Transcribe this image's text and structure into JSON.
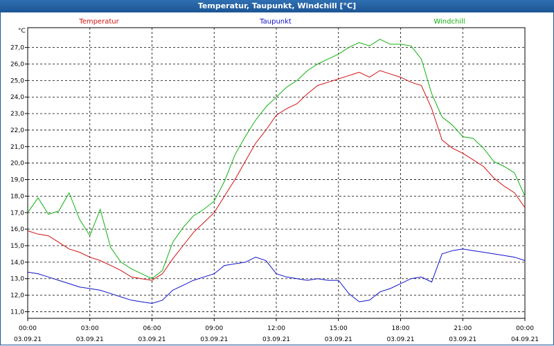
{
  "chart_data": {
    "type": "line",
    "title": "Temperatur, Taupunkt, Windchill [°C]",
    "yunit": "°C",
    "ylim": [
      10.6,
      28.2
    ],
    "yticks": [
      11.0,
      12.0,
      13.0,
      14.0,
      15.0,
      16.0,
      17.0,
      18.0,
      19.0,
      20.0,
      21.0,
      22.0,
      23.0,
      24.0,
      25.0,
      26.0,
      27.0
    ],
    "ytick_labels": [
      "11,0",
      "12,0",
      "13,0",
      "14,0",
      "15,0",
      "16,0",
      "17,0",
      "18,0",
      "19,0",
      "20,0",
      "21,0",
      "22,0",
      "23,0",
      "24,0",
      "25,0",
      "26,0",
      "27,0"
    ],
    "xlim": [
      0,
      24
    ],
    "xticks": [
      0,
      3,
      6,
      9,
      12,
      15,
      18,
      21,
      24
    ],
    "xtick_time": [
      "00:00",
      "03:00",
      "06:00",
      "09:00",
      "12:00",
      "15:00",
      "18:00",
      "21:00",
      "00:00"
    ],
    "xtick_date": [
      "03.09.21",
      "03.09.21",
      "03.09.21",
      "03.09.21",
      "03.09.21",
      "03.09.21",
      "03.09.21",
      "03.09.21",
      "04.09.21"
    ],
    "grid": true,
    "legend_position": "top",
    "series": [
      {
        "name": "Temperatur",
        "color": "#d01010",
        "x": [
          0,
          0.5,
          1,
          1.5,
          2,
          2.5,
          3,
          3.5,
          4,
          4.5,
          5,
          5.5,
          6,
          6.5,
          7,
          7.5,
          8,
          8.5,
          9,
          9.5,
          10,
          10.5,
          11,
          11.5,
          12,
          12.5,
          13,
          13.5,
          14,
          14.5,
          15,
          15.5,
          16,
          16.5,
          17,
          17.5,
          18,
          18.5,
          19,
          19.5,
          20,
          20.5,
          21,
          21.5,
          22,
          22.5,
          23,
          23.5,
          24
        ],
        "values": [
          15.9,
          15.7,
          15.6,
          15.2,
          14.8,
          14.6,
          14.3,
          14.1,
          13.8,
          13.5,
          13.1,
          13.0,
          12.9,
          13.3,
          14.2,
          15.0,
          15.8,
          16.4,
          17.0,
          18.0,
          19.0,
          20.1,
          21.2,
          22.0,
          22.9,
          23.3,
          23.6,
          24.2,
          24.7,
          24.9,
          25.1,
          25.3,
          25.5,
          25.2,
          25.6,
          25.4,
          25.2,
          24.9,
          24.7,
          23.3,
          21.4,
          20.9,
          20.6,
          20.2,
          19.8,
          19.1,
          18.6,
          18.2,
          17.3
        ]
      },
      {
        "name": "Taupunkt",
        "color": "#1010c8",
        "x": [
          0,
          0.5,
          1,
          1.5,
          2,
          2.5,
          3,
          3.5,
          4,
          4.5,
          5,
          5.5,
          6,
          6.5,
          7,
          7.5,
          8,
          8.5,
          9,
          9.5,
          10,
          10.5,
          11,
          11.5,
          12,
          12.5,
          13,
          13.5,
          14,
          14.5,
          15,
          15.5,
          16,
          16.5,
          17,
          17.5,
          18,
          18.5,
          19,
          19.5,
          20,
          20.5,
          21,
          21.5,
          22,
          22.5,
          23,
          23.5,
          24
        ],
        "values": [
          13.4,
          13.3,
          13.1,
          12.9,
          12.7,
          12.5,
          12.4,
          12.3,
          12.1,
          11.9,
          11.7,
          11.6,
          11.5,
          11.7,
          12.3,
          12.6,
          12.9,
          13.1,
          13.3,
          13.8,
          13.9,
          14.0,
          14.3,
          14.1,
          13.3,
          13.1,
          13.0,
          12.9,
          13.0,
          12.9,
          12.9,
          12.1,
          11.6,
          11.7,
          12.2,
          12.4,
          12.7,
          13.0,
          13.1,
          12.8,
          14.5,
          14.7,
          14.8,
          14.7,
          14.6,
          14.5,
          14.4,
          14.3,
          14.1
        ]
      },
      {
        "name": "Windchill",
        "color": "#10b010",
        "x": [
          0,
          0.5,
          1,
          1.5,
          2,
          2.5,
          3,
          3.5,
          4,
          4.5,
          5,
          5.5,
          6,
          6.5,
          7,
          7.5,
          8,
          8.5,
          9,
          9.5,
          10,
          10.5,
          11,
          11.5,
          12,
          12.5,
          13,
          13.5,
          14,
          14.5,
          15,
          15.5,
          16,
          16.5,
          17,
          17.5,
          18,
          18.5,
          19,
          19.5,
          20,
          20.5,
          21,
          21.5,
          22,
          22.5,
          23,
          23.5,
          24
        ],
        "values": [
          17.0,
          17.9,
          16.9,
          17.1,
          18.2,
          16.6,
          15.6,
          17.2,
          14.9,
          14.0,
          13.6,
          13.3,
          13.0,
          13.5,
          15.2,
          16.1,
          16.8,
          17.2,
          17.7,
          18.9,
          20.5,
          21.6,
          22.6,
          23.4,
          24.0,
          24.6,
          25.0,
          25.6,
          26.0,
          26.3,
          26.6,
          27.0,
          27.3,
          27.1,
          27.5,
          27.2,
          27.2,
          27.1,
          26.3,
          24.2,
          22.8,
          22.3,
          21.6,
          21.5,
          20.9,
          20.1,
          19.8,
          19.4,
          18.0
        ]
      }
    ]
  }
}
